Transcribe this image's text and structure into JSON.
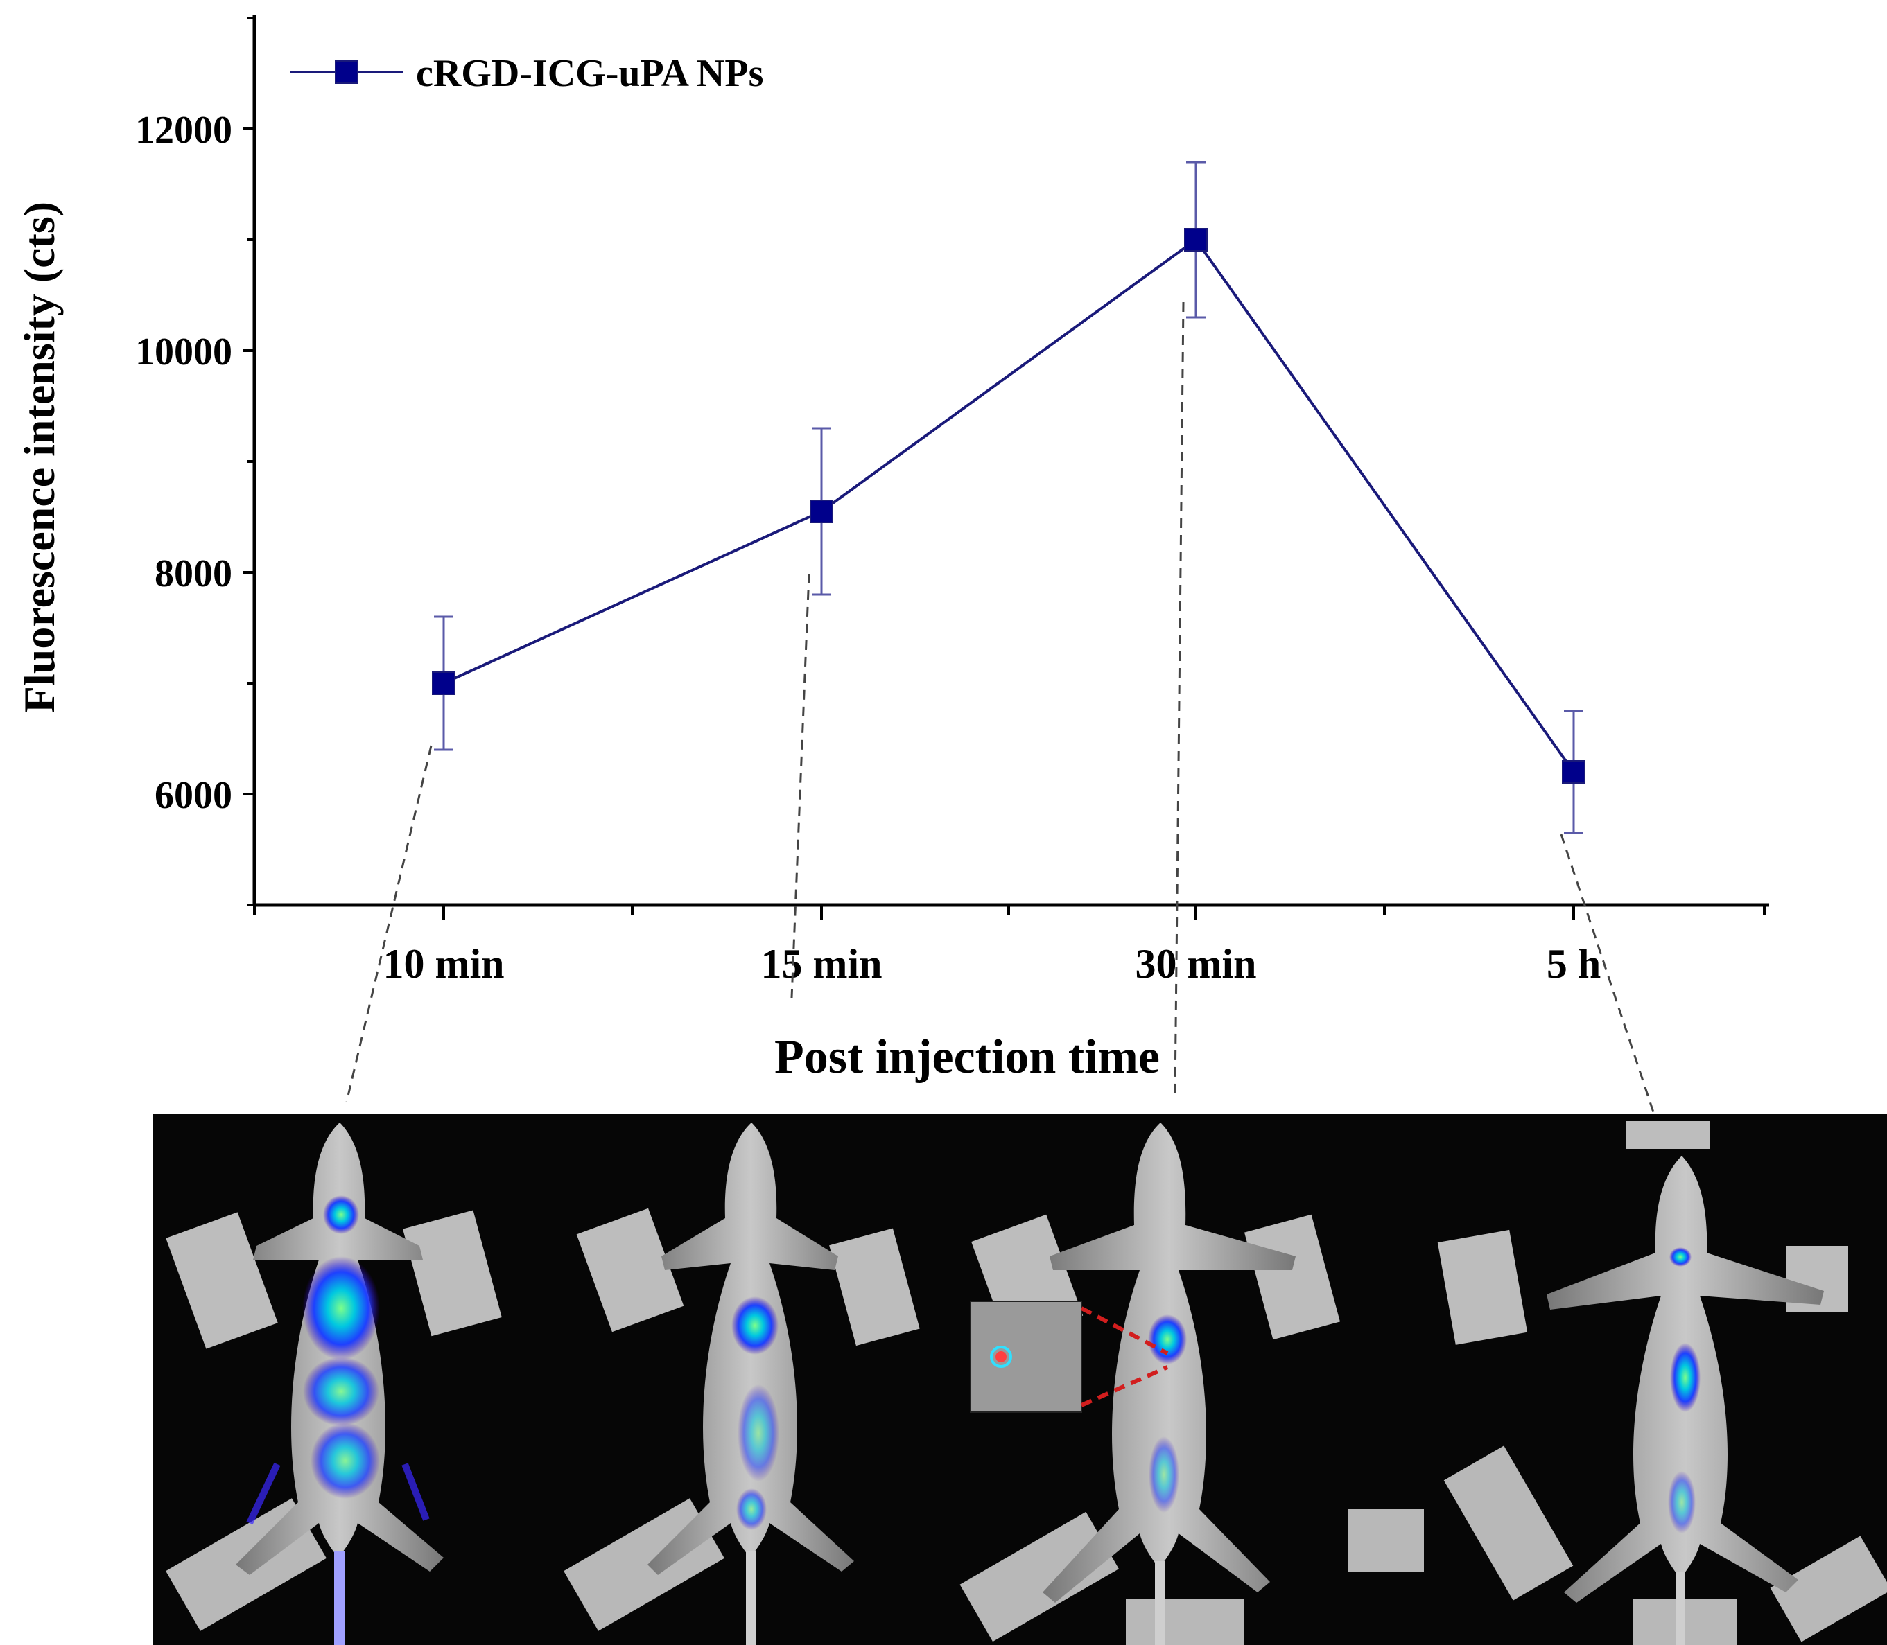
{
  "chart_data": {
    "type": "line",
    "categories": [
      "10 min",
      "15 min",
      "30 min",
      "5 h"
    ],
    "series": [
      {
        "name": "cRGD-ICG-uPA NPs",
        "values": [
          7000,
          8550,
          11000,
          6200
        ],
        "errors": [
          600,
          750,
          700,
          550
        ],
        "color": "#1a1a7a",
        "marker": "square"
      }
    ],
    "xlabel": "Post injection time",
    "ylabel": "Fluorescence intensity (cts)",
    "yticks": [
      6000,
      8000,
      10000,
      12000
    ],
    "ylim": [
      5000,
      13000
    ],
    "legend_position": "top-left",
    "grid": false
  },
  "images": {
    "description_panels": [
      "10 min",
      "15 min",
      "30 min",
      "5 h"
    ]
  }
}
